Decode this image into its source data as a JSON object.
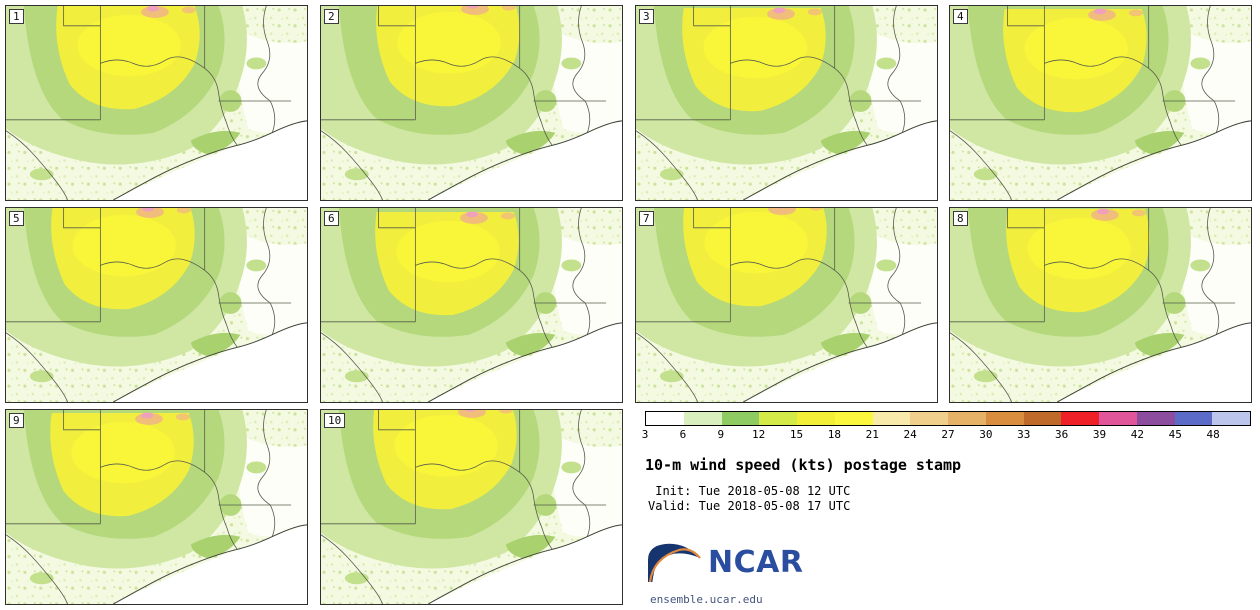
{
  "title": "10-m wind speed (kts) postage stamp",
  "init_line": " Init: Tue 2018-05-08 12 UTC",
  "valid_line": "Valid: Tue 2018-05-08 17 UTC",
  "members": [
    {
      "label": "1"
    },
    {
      "label": "2"
    },
    {
      "label": "3"
    },
    {
      "label": "4"
    },
    {
      "label": "5"
    },
    {
      "label": "6"
    },
    {
      "label": "7"
    },
    {
      "label": "8"
    },
    {
      "label": "9"
    },
    {
      "label": "10"
    }
  ],
  "colorbar": {
    "ticks": [
      "3",
      "6",
      "9",
      "12",
      "15",
      "18",
      "21",
      "24",
      "27",
      "30",
      "33",
      "36",
      "39",
      "42",
      "45",
      "48"
    ],
    "colors": [
      "#ffffff",
      "#d9efbe",
      "#8ecb63",
      "#d4ea49",
      "#f3ef39",
      "#fbf73f",
      "#f7eaaa",
      "#f0cf8d",
      "#e5b267",
      "#d98d3e",
      "#bf6a2a",
      "#ef2028",
      "#e1559b",
      "#8d4d9e",
      "#5c6bc8",
      "#bcc5ec"
    ]
  },
  "branding": {
    "logo_text": "NCAR",
    "url": "ensemble.ucar.edu",
    "logo_blue": "#2a4da0",
    "logo_navy": "#16356e",
    "logo_orange": "#e0883f"
  },
  "chart_data": {
    "type": "heatmap",
    "title": "10-m wind speed (kts) postage stamp",
    "variable": "10-m wind speed",
    "units": "kts",
    "init_time": "Tue 2018-05-08 12 UTC",
    "valid_time": "Tue 2018-05-08 17 UTC",
    "ensemble_members": [
      1,
      2,
      3,
      4,
      5,
      6,
      7,
      8,
      9,
      10
    ],
    "colorbar_ticks_kts": [
      3,
      6,
      9,
      12,
      15,
      18,
      21,
      24,
      27,
      30,
      33,
      36,
      39,
      42,
      45,
      48
    ],
    "colorbar_colors": [
      "#ffffff",
      "#d9efbe",
      "#8ecb63",
      "#d4ea49",
      "#f3ef39",
      "#fbf73f",
      "#f7eaaa",
      "#f0cf8d",
      "#e5b267",
      "#d98d3e",
      "#bf6a2a",
      "#ef2028",
      "#e1559b",
      "#8d4d9e",
      "#5c6bc8",
      "#bcc5ec"
    ],
    "layout": {
      "grid": "4 columns x 3 rows; members 1-10 as postage-stamp maps, legend block in bottom-right area",
      "legend_position": "bottom-right"
    }
  }
}
